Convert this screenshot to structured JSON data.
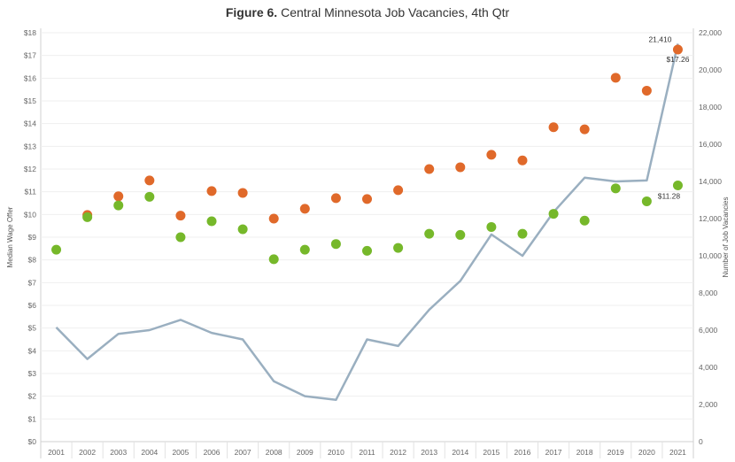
{
  "chart_data": {
    "type": "line+scatter",
    "title_prefix": "Figure 6.",
    "title": "Central Minnesota Job Vacancies, 4th Qtr",
    "x": [
      2001,
      2002,
      2003,
      2004,
      2005,
      2006,
      2007,
      2008,
      2009,
      2010,
      2011,
      2012,
      2013,
      2014,
      2015,
      2016,
      2017,
      2018,
      2019,
      2020,
      2021
    ],
    "ylabel_left": "Median Wage Offer",
    "ylabel_right": "Number of Job Vacancies",
    "ylim_left": [
      0,
      18
    ],
    "ylim_right": [
      0,
      22000
    ],
    "yticks_left": [
      "$0",
      "$1",
      "$2",
      "$3",
      "$4",
      "$5",
      "$6",
      "$7",
      "$8",
      "$9",
      "$10",
      "$11",
      "$12",
      "$13",
      "$14",
      "$15",
      "$16",
      "$17",
      "$18"
    ],
    "yticks_right": [
      "0",
      "2,000",
      "4,000",
      "6,000",
      "8,000",
      "10,000",
      "12,000",
      "14,000",
      "16,000",
      "18,000",
      "20,000",
      "22,000"
    ],
    "series": [
      {
        "kind": "line",
        "axis": "right",
        "color": "#9AAFC0",
        "values": [
          6150,
          4450,
          5800,
          6000,
          6550,
          5850,
          5500,
          3250,
          2450,
          2250,
          5500,
          5150,
          7100,
          8650,
          11150,
          10000,
          12350,
          14200,
          14000,
          14050,
          21410
        ]
      },
      {
        "kind": "scatter",
        "axis": "left",
        "color": "#E0692A",
        "values": [
          null,
          9.98,
          10.8,
          11.5,
          9.95,
          11.03,
          10.95,
          9.82,
          10.25,
          10.72,
          10.68,
          11.07,
          12.0,
          12.08,
          12.63,
          12.38,
          13.84,
          13.75,
          16.02,
          15.45,
          17.26
        ]
      },
      {
        "kind": "scatter",
        "axis": "left",
        "color": "#76B82A",
        "values": [
          8.45,
          9.88,
          10.4,
          10.78,
          9.0,
          9.7,
          9.35,
          8.03,
          8.45,
          8.7,
          8.4,
          8.53,
          9.15,
          9.1,
          9.45,
          9.15,
          10.03,
          9.73,
          11.15,
          10.58,
          11.28
        ]
      }
    ],
    "annotations": [
      {
        "text": "21,410",
        "year": 2021
      },
      {
        "text": "$17.26",
        "year": 2021
      },
      {
        "text": "$11.28",
        "year": 2021
      }
    ],
    "grid": true
  }
}
